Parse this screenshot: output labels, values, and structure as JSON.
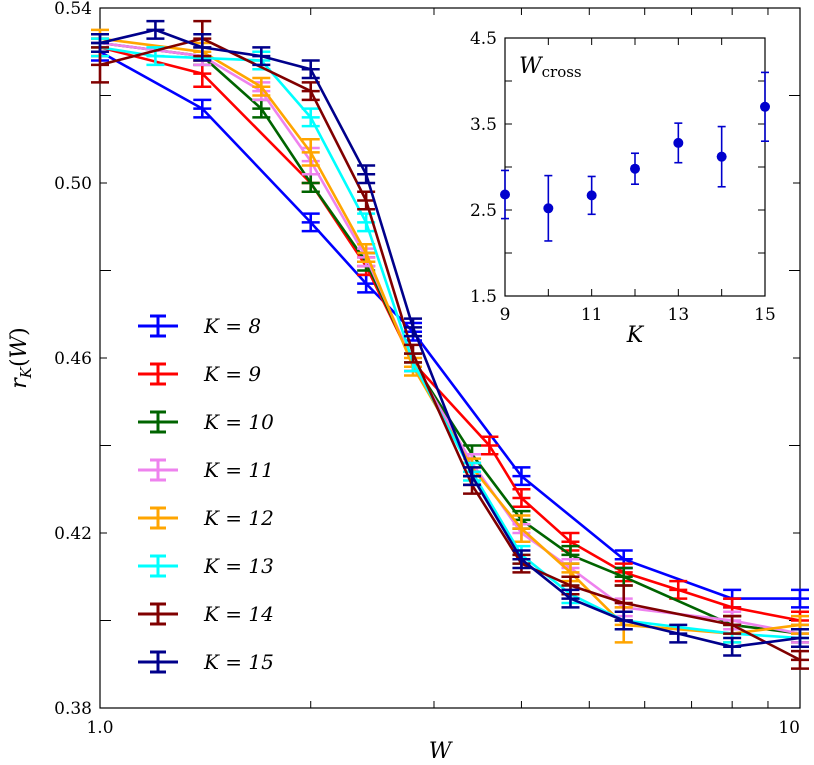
{
  "chart_data": [
    {
      "type": "line",
      "title": "",
      "xlabel": "W",
      "ylabel": "r_K(W)",
      "x_scale": "log",
      "xlim": [
        1.0,
        10
      ],
      "ylim": [
        0.38,
        0.54
      ],
      "x_tick_labels": [
        "1.0",
        "10"
      ],
      "y_ticks": [
        0.38,
        0.42,
        0.46,
        0.5,
        0.54
      ],
      "y_tick_labels": [
        "0.38",
        "0.42",
        "0.46",
        "0.50",
        "0.54"
      ],
      "legend_position": "lower-left",
      "error_bars": true,
      "series": [
        {
          "name": "K = 8",
          "color": "#0000ff",
          "x": [
            1.0,
            1.4,
            2.0,
            2.4,
            2.8,
            4.0,
            5.6,
            8.0,
            10.0
          ],
          "y": [
            0.53,
            0.517,
            0.491,
            0.477,
            0.466,
            0.433,
            0.414,
            0.405,
            0.405
          ],
          "err": [
            0.002,
            0.002,
            0.002,
            0.002,
            0.002,
            0.002,
            0.002,
            0.002,
            0.002
          ]
        },
        {
          "name": "K = 9",
          "color": "#ff0000",
          "x": [
            1.0,
            1.4,
            2.0,
            2.4,
            2.8,
            3.6,
            4.0,
            4.7,
            5.6,
            6.7,
            8.0,
            10.0
          ],
          "y": [
            0.531,
            0.525,
            0.5,
            0.481,
            0.459,
            0.44,
            0.428,
            0.418,
            0.411,
            0.407,
            0.403,
            0.4
          ],
          "err": [
            0.002,
            0.003,
            0.002,
            0.002,
            0.002,
            0.002,
            0.002,
            0.002,
            0.002,
            0.002,
            0.002,
            0.002
          ]
        },
        {
          "name": "K = 10",
          "color": "#006400",
          "x": [
            1.0,
            1.4,
            1.7,
            2.0,
            2.4,
            2.8,
            3.4,
            4.0,
            4.7,
            5.6,
            8.0,
            10.0
          ],
          "y": [
            0.532,
            0.529,
            0.517,
            0.5,
            0.482,
            0.459,
            0.438,
            0.423,
            0.415,
            0.41,
            0.399,
            0.397
          ],
          "err": [
            0.002,
            0.002,
            0.002,
            0.002,
            0.002,
            0.002,
            0.002,
            0.002,
            0.002,
            0.002,
            0.002,
            0.002
          ]
        },
        {
          "name": "K = 11",
          "color": "#ee82ee",
          "x": [
            1.0,
            1.4,
            1.7,
            2.0,
            2.4,
            2.8,
            3.4,
            4.0,
            4.7,
            5.6,
            8.0,
            10.0
          ],
          "y": [
            0.532,
            0.529,
            0.521,
            0.505,
            0.483,
            0.459,
            0.436,
            0.42,
            0.412,
            0.403,
            0.4,
            0.397
          ],
          "err": [
            0.002,
            0.002,
            0.002,
            0.003,
            0.002,
            0.002,
            0.002,
            0.002,
            0.002,
            0.002,
            0.002,
            0.002
          ]
        },
        {
          "name": "K = 12",
          "color": "#ffa500",
          "x": [
            1.0,
            1.4,
            1.7,
            2.0,
            2.4,
            2.8,
            3.4,
            4.0,
            4.7,
            5.6,
            8.0,
            10.0
          ],
          "y": [
            0.533,
            0.53,
            0.522,
            0.507,
            0.484,
            0.458,
            0.435,
            0.421,
            0.411,
            0.399,
            0.397,
            0.399
          ],
          "err": [
            0.002,
            0.002,
            0.002,
            0.003,
            0.002,
            0.002,
            0.002,
            0.003,
            0.002,
            0.004,
            0.002,
            0.002
          ]
        },
        {
          "name": "K = 13",
          "color": "#00ffff",
          "x": [
            1.0,
            1.2,
            1.7,
            2.0,
            2.4,
            2.8,
            3.4,
            4.0,
            4.7,
            5.6,
            8.0,
            10.0
          ],
          "y": [
            0.531,
            0.529,
            0.528,
            0.515,
            0.491,
            0.459,
            0.434,
            0.415,
            0.406,
            0.4,
            0.397,
            0.396
          ],
          "err": [
            0.002,
            0.002,
            0.002,
            0.002,
            0.002,
            0.002,
            0.002,
            0.002,
            0.002,
            0.002,
            0.002,
            0.002
          ]
        },
        {
          "name": "K = 14",
          "color": "#800000",
          "x": [
            1.0,
            1.4,
            2.0,
            2.4,
            2.8,
            3.4,
            4.0,
            4.7,
            5.6,
            8.0,
            10.0
          ],
          "y": [
            0.527,
            0.533,
            0.521,
            0.496,
            0.461,
            0.431,
            0.413,
            0.408,
            0.404,
            0.399,
            0.391
          ],
          "err": [
            0.004,
            0.004,
            0.002,
            0.002,
            0.002,
            0.002,
            0.002,
            0.002,
            0.004,
            0.002,
            0.002
          ]
        },
        {
          "name": "K = 15",
          "color": "#00008b",
          "x": [
            1.0,
            1.2,
            1.4,
            1.7,
            2.0,
            2.4,
            2.8,
            3.4,
            4.0,
            4.7,
            5.6,
            6.7,
            8.0,
            10.0
          ],
          "y": [
            0.532,
            0.535,
            0.531,
            0.529,
            0.526,
            0.502,
            0.467,
            0.433,
            0.414,
            0.405,
            0.4,
            0.397,
            0.394,
            0.396
          ],
          "err": [
            0.002,
            0.002,
            0.003,
            0.002,
            0.002,
            0.002,
            0.002,
            0.002,
            0.002,
            0.002,
            0.002,
            0.002,
            0.002,
            0.002
          ]
        }
      ]
    },
    {
      "type": "scatter",
      "title": "",
      "annotation_main": "W",
      "annotation_sub": "cross",
      "xlabel": "K",
      "ylabel": "",
      "xlim": [
        9,
        15
      ],
      "ylim": [
        1.5,
        4.5
      ],
      "x_tick_labels": [
        "9",
        "11",
        "13",
        "15"
      ],
      "y_tick_labels": [
        "1.5",
        "2.5",
        "3.5",
        "4.5"
      ],
      "error_bars": true,
      "series": [
        {
          "color": "#0000cd",
          "x": [
            9,
            10,
            11,
            12,
            13,
            14,
            15
          ],
          "y": [
            2.68,
            2.52,
            2.67,
            2.98,
            3.28,
            3.12,
            3.7
          ],
          "err": [
            0.28,
            0.38,
            0.22,
            0.18,
            0.23,
            0.35,
            0.4
          ]
        }
      ]
    }
  ]
}
